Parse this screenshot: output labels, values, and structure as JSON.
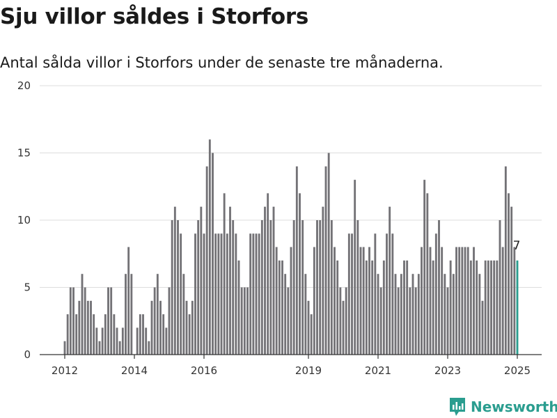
{
  "header": {
    "title": "Sju villor såldes i Storfors",
    "subtitle": "Antal sålda villor i Storfors under de senaste tre månaderna."
  },
  "brand": {
    "name": "Newsworthy",
    "icon": "newsworthy-logo-icon",
    "color": "#2a9d8f"
  },
  "colors": {
    "bar": "#737276",
    "highlight": "#2a9d8f",
    "grid": "#dddddd",
    "axis": "#333333"
  },
  "chart_data": {
    "type": "bar",
    "title": "Sju villor såldes i Storfors",
    "subtitle": "Antal sålda villor i Storfors under de senaste tre månaderna.",
    "xlabel": "",
    "ylabel": "",
    "ylim": [
      0,
      20
    ],
    "yticks": [
      "0",
      "5",
      "10",
      "15",
      "20"
    ],
    "xticks": [
      "2012",
      "2014",
      "2016",
      "2019",
      "2021",
      "2023",
      "2025"
    ],
    "xrange": [
      "2012-01",
      "2025-01"
    ],
    "grid": true,
    "legend": "none",
    "highlight_last": true,
    "last_label": "7",
    "categories": [
      "2012-01",
      "2012-02",
      "2012-03",
      "2012-04",
      "2012-05",
      "2012-06",
      "2012-07",
      "2012-08",
      "2012-09",
      "2012-10",
      "2012-11",
      "2012-12",
      "2013-01",
      "2013-02",
      "2013-03",
      "2013-04",
      "2013-05",
      "2013-06",
      "2013-07",
      "2013-08",
      "2013-09",
      "2013-10",
      "2013-11",
      "2013-12",
      "2014-01",
      "2014-02",
      "2014-03",
      "2014-04",
      "2014-05",
      "2014-06",
      "2014-07",
      "2014-08",
      "2014-09",
      "2014-10",
      "2014-11",
      "2014-12",
      "2015-01",
      "2015-02",
      "2015-03",
      "2015-04",
      "2015-05",
      "2015-06",
      "2015-07",
      "2015-08",
      "2015-09",
      "2015-10",
      "2015-11",
      "2015-12",
      "2016-01",
      "2016-02",
      "2016-03",
      "2016-04",
      "2016-05",
      "2016-06",
      "2016-07",
      "2016-08",
      "2016-09",
      "2016-10",
      "2016-11",
      "2016-12",
      "2017-01",
      "2017-02",
      "2017-03",
      "2017-04",
      "2017-05",
      "2017-06",
      "2017-07",
      "2017-08",
      "2017-09",
      "2017-10",
      "2017-11",
      "2017-12",
      "2018-01",
      "2018-02",
      "2018-03",
      "2018-04",
      "2018-05",
      "2018-06",
      "2018-07",
      "2018-08",
      "2018-09",
      "2018-10",
      "2018-11",
      "2018-12",
      "2019-01",
      "2019-02",
      "2019-03",
      "2019-04",
      "2019-05",
      "2019-06",
      "2019-07",
      "2019-08",
      "2019-09",
      "2019-10",
      "2019-11",
      "2019-12",
      "2020-01",
      "2020-02",
      "2020-03",
      "2020-04",
      "2020-05",
      "2020-06",
      "2020-07",
      "2020-08",
      "2020-09",
      "2020-10",
      "2020-11",
      "2020-12",
      "2021-01",
      "2021-02",
      "2021-03",
      "2021-04",
      "2021-05",
      "2021-06",
      "2021-07",
      "2021-08",
      "2021-09",
      "2021-10",
      "2021-11",
      "2021-12",
      "2022-01",
      "2022-02",
      "2022-03",
      "2022-04",
      "2022-05",
      "2022-06",
      "2022-07",
      "2022-08",
      "2022-09",
      "2022-10",
      "2022-11",
      "2022-12",
      "2023-01",
      "2023-02",
      "2023-03",
      "2023-04",
      "2023-05",
      "2023-06",
      "2023-07",
      "2023-08",
      "2023-09",
      "2023-10",
      "2023-11",
      "2023-12",
      "2024-01",
      "2024-02",
      "2024-03",
      "2024-04",
      "2024-05",
      "2024-06",
      "2024-07",
      "2024-08",
      "2024-09",
      "2024-10",
      "2024-11",
      "2024-12",
      "2025-01"
    ],
    "values": [
      1,
      3,
      5,
      5,
      3,
      4,
      6,
      5,
      4,
      4,
      3,
      2,
      1,
      2,
      3,
      5,
      5,
      3,
      2,
      1,
      2,
      6,
      8,
      6,
      0,
      2,
      3,
      3,
      2,
      1,
      4,
      5,
      6,
      4,
      3,
      2,
      5,
      10,
      11,
      10,
      9,
      6,
      4,
      3,
      4,
      9,
      10,
      11,
      9,
      14,
      16,
      15,
      9,
      9,
      9,
      12,
      9,
      11,
      10,
      9,
      7,
      5,
      5,
      5,
      9,
      9,
      9,
      9,
      10,
      11,
      12,
      10,
      11,
      8,
      7,
      7,
      6,
      5,
      8,
      10,
      14,
      12,
      10,
      6,
      4,
      3,
      8,
      10,
      10,
      11,
      14,
      15,
      10,
      8,
      7,
      5,
      4,
      5,
      9,
      9,
      13,
      10,
      8,
      8,
      7,
      8,
      7,
      9,
      6,
      5,
      7,
      9,
      11,
      9,
      6,
      5,
      6,
      7,
      7,
      5,
      6,
      5,
      6,
      8,
      13,
      12,
      8,
      7,
      9,
      10,
      8,
      6,
      5,
      7,
      6,
      8,
      8,
      8,
      8,
      8,
      7,
      8,
      7,
      6,
      4,
      7,
      7,
      7,
      7,
      7,
      10,
      8,
      14,
      12,
      11,
      8,
      7
    ]
  }
}
